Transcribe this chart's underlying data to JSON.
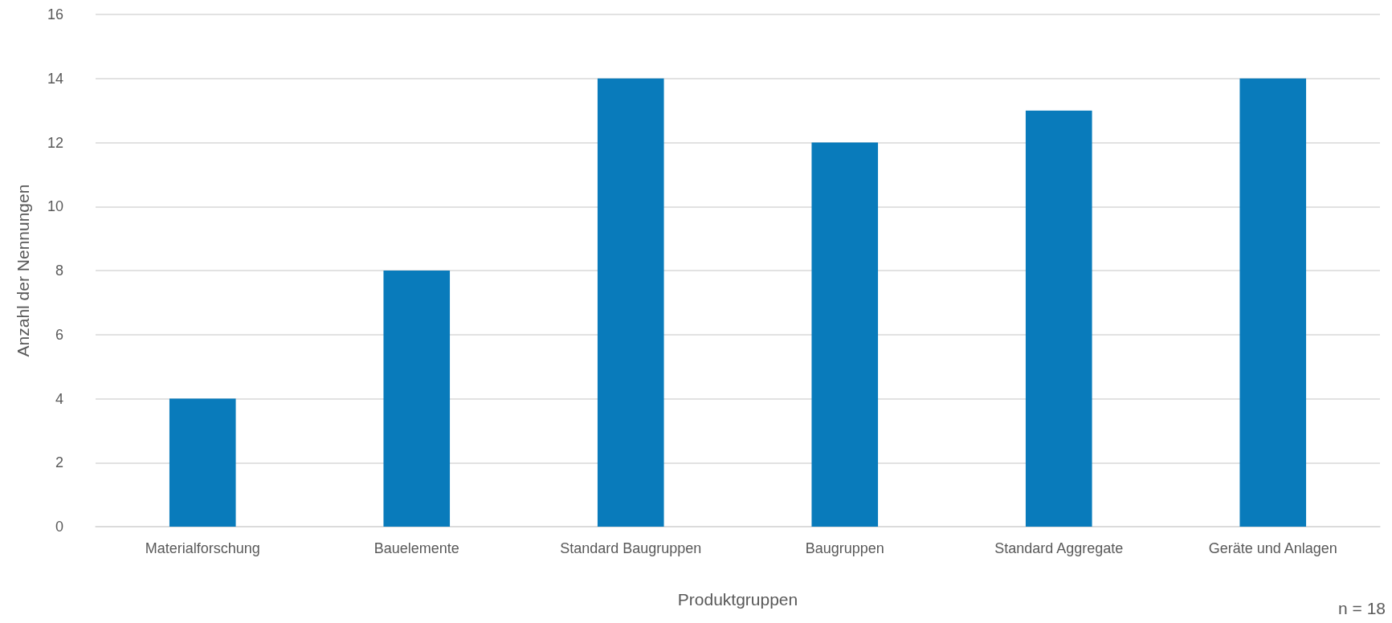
{
  "chart_data": {
    "type": "bar",
    "xlabel": "Produktgruppen",
    "ylabel": "Anzahl der Nennungen",
    "categories": [
      "Materialforschung",
      "Bauelemente",
      "Standard Baugruppen",
      "Baugruppen",
      "Standard Aggregate",
      "Geräte und Anlagen"
    ],
    "values": [
      4,
      8,
      14,
      12,
      13,
      14
    ],
    "color": "#097bbb",
    "ylim": [
      0,
      16
    ],
    "yticks": [
      0,
      2,
      4,
      6,
      8,
      10,
      12,
      14,
      16
    ],
    "grid": "y",
    "annotations": [
      "n = 18"
    ]
  }
}
